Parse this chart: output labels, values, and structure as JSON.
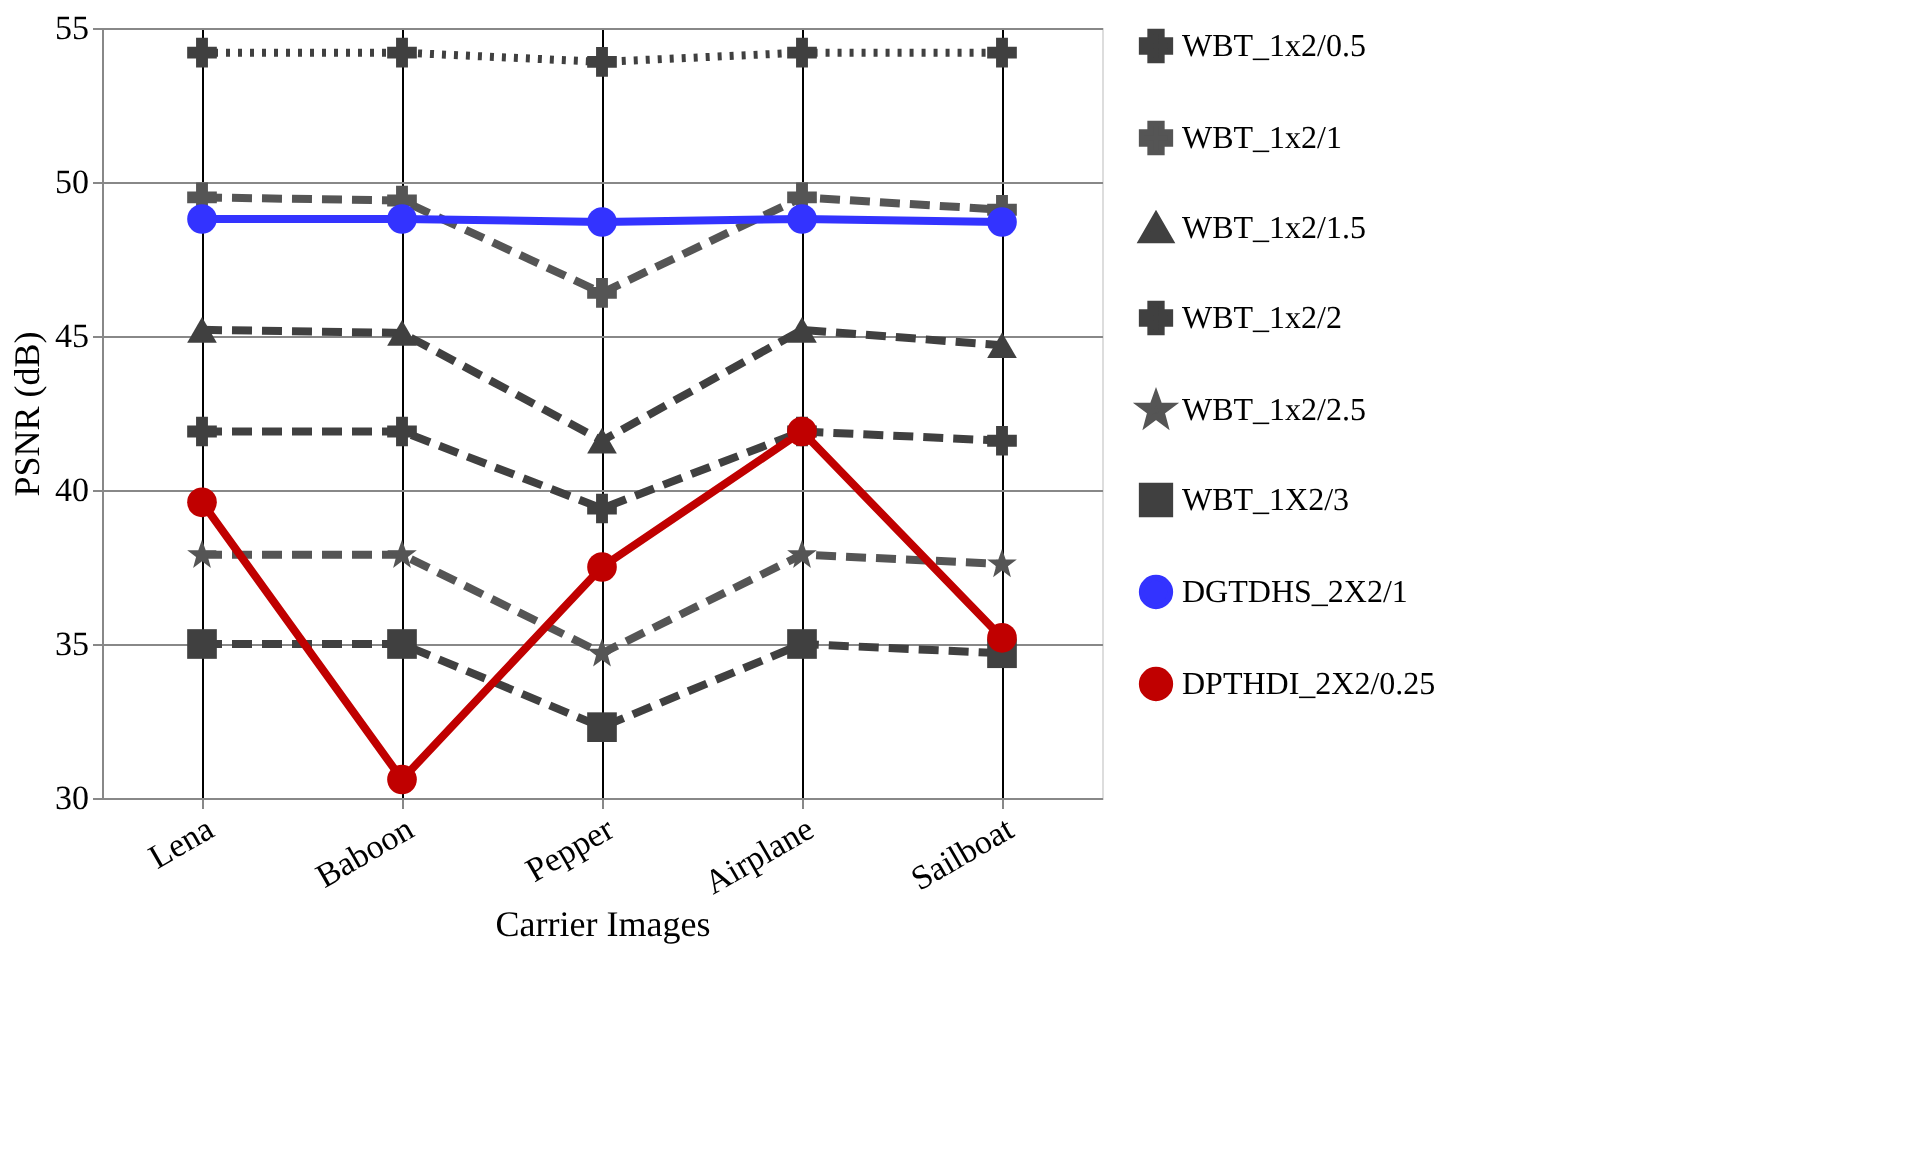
{
  "chart_data": {
    "type": "line",
    "xlabel": "Carrier Images",
    "ylabel": "PSNR (dB)",
    "categories": [
      "Lena",
      "Baboon",
      "Pepper",
      "Airplane",
      "Sailboat"
    ],
    "ylim": [
      30,
      55
    ],
    "yticks": [
      30,
      35,
      40,
      45,
      50,
      55
    ],
    "grid": true,
    "legend": "right",
    "series": [
      {
        "name": "WBT_1x2/0.5",
        "color": "#404040",
        "values": [
          54.2,
          54.2,
          53.9,
          54.2,
          54.2
        ],
        "marker": "cross",
        "line_style": "dotted"
      },
      {
        "name": "WBT_1x2/1",
        "color": "#555555",
        "values": [
          49.5,
          49.4,
          46.4,
          49.5,
          49.1
        ],
        "marker": "cross",
        "line_style": "dashed"
      },
      {
        "name": "WBT_1x2/1.5",
        "color": "#404040",
        "values": [
          45.2,
          45.1,
          41.6,
          45.2,
          44.7
        ],
        "marker": "triangle",
        "line_style": "dashed"
      },
      {
        "name": "WBT_1x2/2",
        "color": "#404040",
        "values": [
          41.9,
          41.9,
          39.4,
          41.9,
          41.6
        ],
        "marker": "cross",
        "line_style": "dashed"
      },
      {
        "name": "WBT_1x2/2.5",
        "color": "#555555",
        "values": [
          37.9,
          37.9,
          34.7,
          37.9,
          37.6
        ],
        "marker": "star",
        "line_style": "dashed"
      },
      {
        "name": "WBT_1X2/3",
        "color": "#404040",
        "values": [
          35.0,
          35.0,
          32.3,
          35.0,
          34.7
        ],
        "marker": "square",
        "line_style": "dashed"
      },
      {
        "name": "DGTDHS_2X2/1",
        "color": "#3333ff",
        "values": [
          48.8,
          48.8,
          48.7,
          48.8,
          48.7
        ],
        "marker": "circle",
        "line_style": "solid"
      },
      {
        "name": "DPTHDI_2X2/0.25",
        "color": "#c00000",
        "values": [
          39.6,
          30.6,
          37.5,
          41.9,
          35.2
        ],
        "marker": "circle",
        "line_style": "solid"
      }
    ]
  }
}
